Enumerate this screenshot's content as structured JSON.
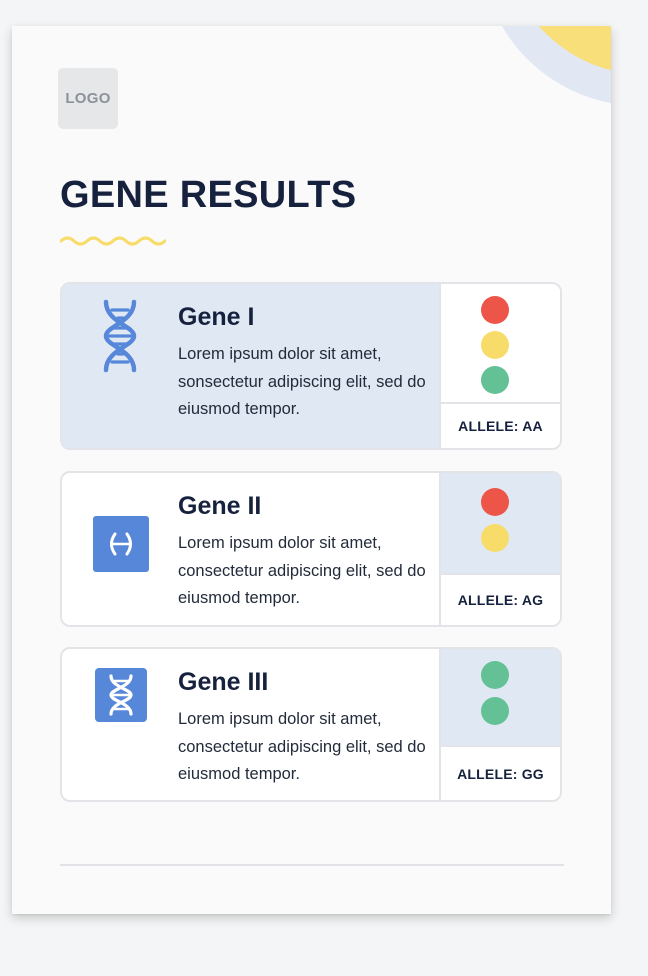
{
  "logo_text": "LOGO",
  "title": "GENE RESULTS",
  "colors": {
    "red": "#ec5548",
    "yellow": "#f8dc69",
    "green": "#63c195",
    "blue": "#5787d8",
    "navy": "#15213d"
  },
  "genes": [
    {
      "name": "Gene I",
      "description": "Lorem ipsum dolor sit amet, sonsectetur adipiscing elit, sed do eiusmod tempor.",
      "allele": "ALLELE: AA",
      "icon": "dna-helix-icon",
      "indicators": [
        "red",
        "yellow",
        "green"
      ]
    },
    {
      "name": "Gene II",
      "description": "Lorem ipsum dolor sit amet, consectetur adipiscing elit, sed do eiusmod tempor.",
      "allele": "ALLELE: AG",
      "icon": "brackets-icon",
      "indicators": [
        "red",
        "yellow"
      ]
    },
    {
      "name": "Gene III",
      "description": "Lorem ipsum dolor sit amet, consectetur adipiscing elit, sed do eiusmod tempor.",
      "allele": "ALLELE: GG",
      "icon": "dna-badge-icon",
      "indicators": [
        "green",
        "green"
      ]
    }
  ]
}
